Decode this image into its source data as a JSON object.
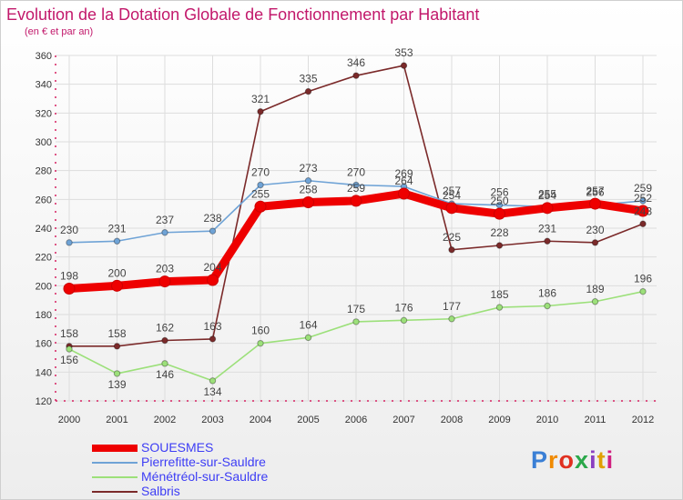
{
  "title": "Evolution de la Dotation Globale de Fonctionnement par Habitant",
  "subtitle": "(en € et par an)",
  "logo": "Proxiti",
  "chart_data": {
    "type": "line",
    "title": "Evolution de la Dotation Globale de Fonctionnement par Habitant",
    "ylabel": "en € et par an",
    "x": [
      "2000",
      "2001",
      "2002",
      "2003",
      "2004",
      "2005",
      "2006",
      "2007",
      "2008",
      "2009",
      "2010",
      "2011",
      "2012"
    ],
    "ylim": [
      120,
      360
    ],
    "yticks": [
      120,
      140,
      160,
      180,
      200,
      220,
      240,
      260,
      280,
      300,
      320,
      340,
      360
    ],
    "grid": true,
    "legend": "bottom-left",
    "series": [
      {
        "name": "Salbris",
        "color": "#7b2a2a",
        "values": [
          158,
          158,
          162,
          163,
          321,
          335,
          346,
          353,
          225,
          228,
          231,
          230,
          243
        ]
      },
      {
        "name": "Ménétréol-sur-Sauldre",
        "color": "#9ce07a",
        "values": [
          156,
          139,
          146,
          134,
          160,
          164,
          175,
          176,
          177,
          185,
          186,
          189,
          196
        ]
      },
      {
        "name": "Pierrefitte-sur-Sauldre",
        "color": "#6fa3d6",
        "values": [
          230,
          231,
          237,
          238,
          270,
          273,
          270,
          269,
          257,
          256,
          255,
          256,
          259
        ]
      },
      {
        "name": "SOUESMES",
        "color": "#ee0000",
        "values": [
          198,
          200,
          203,
          204,
          255,
          258,
          259,
          264,
          254,
          250,
          254,
          257,
          252
        ]
      }
    ],
    "value_labels": {
      "Salbris": [
        "158",
        "158",
        "162",
        "163",
        "321",
        "335",
        "346",
        "353",
        "225",
        "228",
        "231",
        "230",
        "243"
      ],
      "Ménétréol-sur-Sauldre": [
        "156",
        "139",
        "146",
        "134",
        "160",
        "164",
        "175",
        "176",
        "177",
        "185",
        "186",
        "189",
        "196"
      ],
      "Pierrefitte-sur-Sauldre": [
        "230",
        "231",
        "237",
        "238",
        "270",
        "273",
        "270",
        "269",
        "257",
        "256",
        "255",
        "256",
        "259"
      ],
      "SOUESMES": [
        "198",
        "200",
        "203",
        "204",
        "255",
        "258",
        "259",
        "264",
        "254",
        "250",
        "254",
        "257",
        "252"
      ]
    },
    "legend_order": [
      "SOUESMES",
      "Pierrefitte-sur-Sauldre",
      "Ménétréol-sur-Sauldre",
      "Salbris"
    ]
  }
}
